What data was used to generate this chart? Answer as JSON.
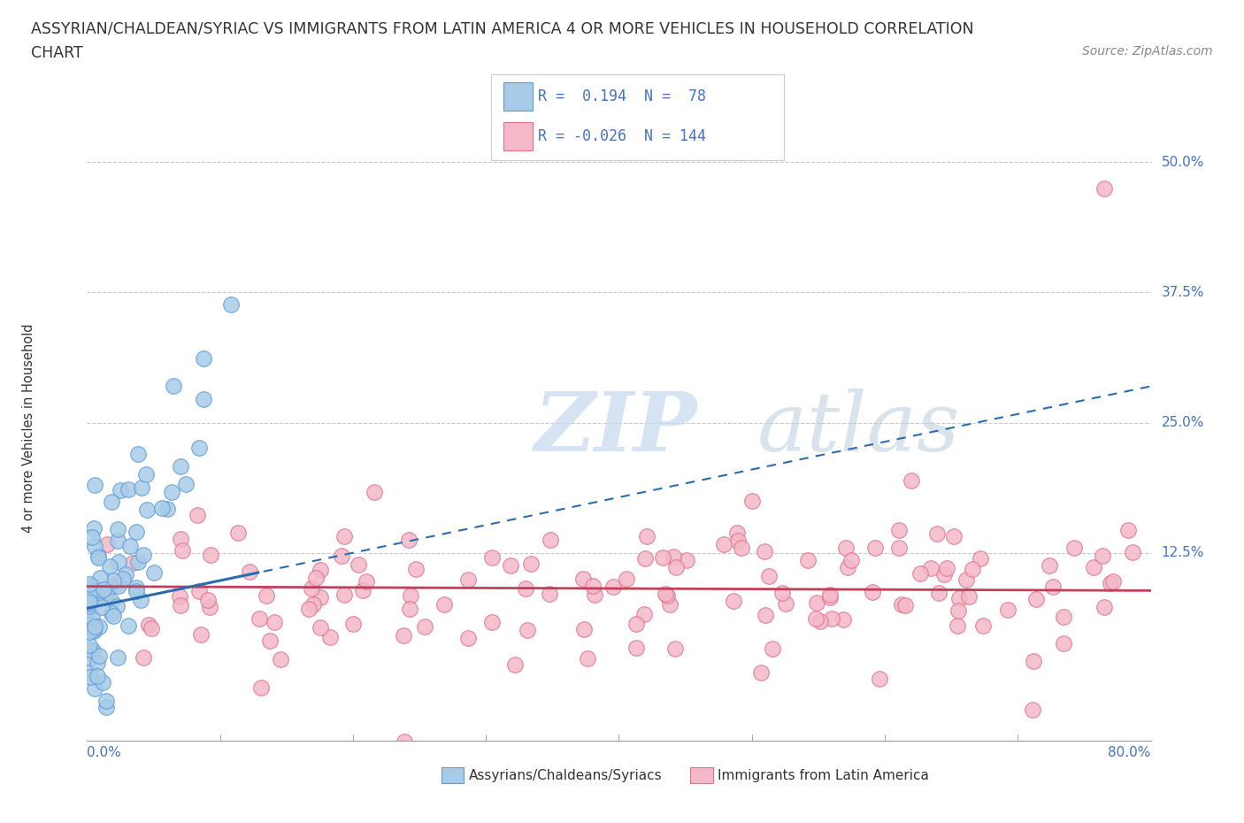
{
  "title_line1": "ASSYRIAN/CHALDEAN/SYRIAC VS IMMIGRANTS FROM LATIN AMERICA 4 OR MORE VEHICLES IN HOUSEHOLD CORRELATION",
  "title_line2": "CHART",
  "source": "Source: ZipAtlas.com",
  "ylabel": "4 or more Vehicles in Household",
  "ytick_vals": [
    0.125,
    0.25,
    0.375,
    0.5
  ],
  "ytick_labels": [
    "12.5%",
    "25.0%",
    "37.5%",
    "50.0%"
  ],
  "xmin": 0.0,
  "xmax": 0.8,
  "ymin": -0.055,
  "ymax": 0.545,
  "blue_color": "#a8cce8",
  "blue_edge_color": "#5b9bd5",
  "pink_color": "#f4b8c8",
  "pink_edge_color": "#e07090",
  "blue_trend_color": "#2b6cb0",
  "pink_trend_color": "#c0405a",
  "grid_color": "#c8c8c8",
  "label_color": "#4472c4",
  "watermark_color": "#dce8f5"
}
